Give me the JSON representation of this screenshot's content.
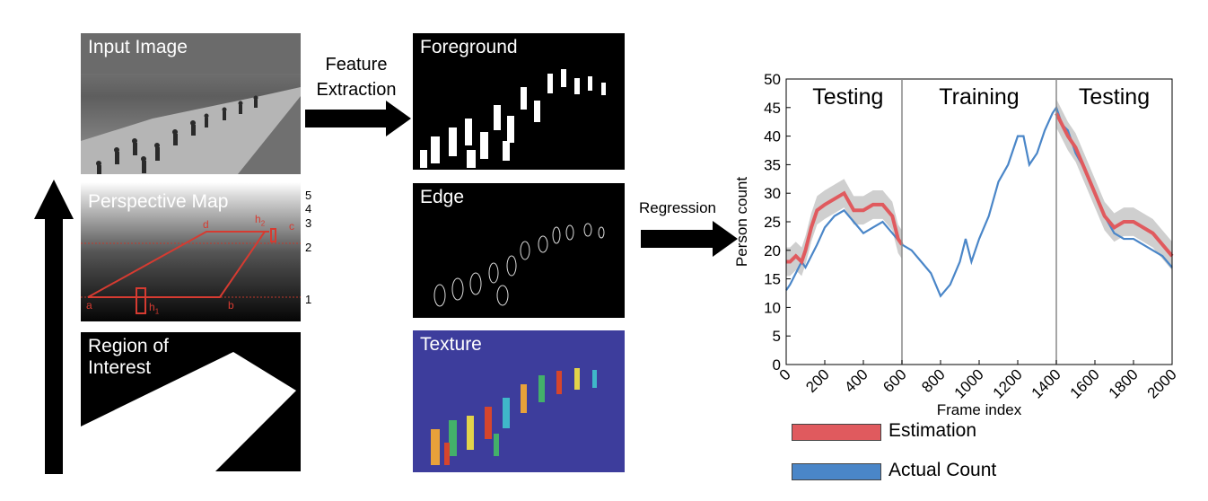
{
  "panels": {
    "input_image": "Input Image",
    "perspective_map": "Perspective Map",
    "region_of_interest": "Region of Interest",
    "foreground": "Foreground",
    "edge": "Edge",
    "texture": "Texture"
  },
  "perspective_marks": {
    "levels": [
      "5",
      "4",
      "3",
      "2",
      "1"
    ],
    "points": {
      "a": "a",
      "b": "b",
      "c": "c",
      "d": "d",
      "h1": "h",
      "h1_sub": "1",
      "h2": "h",
      "h2_sub": "2"
    }
  },
  "arrows": {
    "feature_extraction_line1": "Feature",
    "feature_extraction_line2": "Extraction",
    "regression": "Regression"
  },
  "colors": {
    "estimation": "#e05a5e",
    "actual": "#4a86c8",
    "band": "#cfcfcf",
    "texture_bg": "#3d3d9c"
  },
  "chart_data": {
    "type": "line",
    "xlabel": "Frame index",
    "ylabel": "Person count",
    "xlim": [
      0,
      2000
    ],
    "ylim": [
      0,
      50
    ],
    "xticks": [
      0,
      200,
      400,
      600,
      800,
      1000,
      1200,
      1400,
      1600,
      1800,
      2000
    ],
    "yticks": [
      0,
      5,
      10,
      15,
      20,
      25,
      30,
      35,
      40,
      45,
      50
    ],
    "section_dividers": [
      600,
      1400
    ],
    "sections": [
      {
        "label": "Testing",
        "x_center": 320
      },
      {
        "label": "Training",
        "x_center": 1000
      },
      {
        "label": "Testing",
        "x_center": 1700
      }
    ],
    "series": [
      {
        "name": "Actual Count",
        "x": [
          0,
          20,
          50,
          80,
          100,
          130,
          160,
          200,
          250,
          300,
          350,
          400,
          450,
          500,
          550,
          600,
          650,
          700,
          750,
          800,
          850,
          900,
          930,
          960,
          1000,
          1050,
          1100,
          1150,
          1200,
          1230,
          1260,
          1300,
          1340,
          1380,
          1400,
          1430,
          1460,
          1500,
          1550,
          1600,
          1650,
          1700,
          1750,
          1800,
          1850,
          1900,
          1950,
          2000
        ],
        "values": [
          13,
          14,
          16,
          18,
          17,
          19,
          21,
          24,
          26,
          27,
          25,
          23,
          24,
          25,
          23,
          21,
          20,
          18,
          16,
          12,
          14,
          18,
          22,
          18,
          22,
          26,
          32,
          35,
          40,
          40,
          35,
          37,
          41,
          44,
          45,
          42,
          41,
          37,
          34,
          30,
          26,
          23,
          22,
          22,
          21,
          20,
          19,
          17
        ]
      },
      {
        "name": "Estimation",
        "x": [
          1400,
          1430,
          1460,
          1500,
          1550,
          1600,
          1650,
          1700,
          1750,
          1800,
          1850,
          1900,
          1950,
          2000
        ],
        "values": [
          44,
          42,
          40,
          38,
          34,
          30,
          26,
          24,
          25,
          25,
          24,
          23,
          21,
          19
        ],
        "x_part1": [
          0,
          20,
          50,
          80,
          100,
          130,
          160,
          200,
          250,
          300,
          350,
          400,
          450,
          500,
          550,
          580,
          600
        ],
        "values_part1": [
          18,
          18,
          19,
          18,
          20,
          24,
          27,
          28,
          29,
          30,
          27,
          27,
          28,
          28,
          26,
          22,
          21
        ]
      }
    ],
    "legend": [
      {
        "name": "Estimation",
        "color": "#e05a5e"
      },
      {
        "name": "Actual Count",
        "color": "#4a86c8"
      }
    ]
  }
}
